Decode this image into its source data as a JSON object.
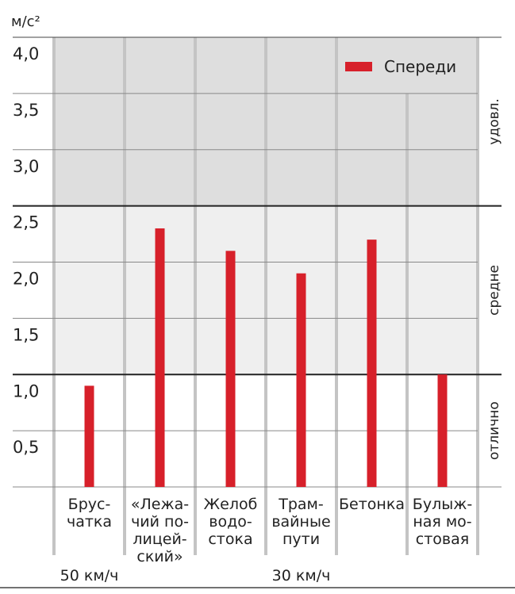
{
  "chart_data": {
    "type": "bar",
    "unit_label": "м/с²",
    "categories": [
      [
        "Брус-",
        "чатка"
      ],
      [
        "«Лежа-",
        "чий по-",
        "лицей-",
        "ский»"
      ],
      [
        "Желоб",
        "водо-",
        "стока"
      ],
      [
        "Трам-",
        "вайные",
        "пути"
      ],
      [
        "Бетонка"
      ],
      [
        "Булыж-",
        "ная мо-",
        "стовая"
      ]
    ],
    "series": [
      {
        "name": "Спереди",
        "color": "#d7202a",
        "values": [
          0.9,
          2.3,
          2.1,
          1.9,
          2.2,
          1.0
        ]
      }
    ],
    "ylim": [
      0,
      4.0
    ],
    "yticks": [
      "0,5",
      "1,0",
      "1,5",
      "2,0",
      "2,5",
      "3,0",
      "3,5",
      "4,0"
    ],
    "ytick_values": [
      0.5,
      1.0,
      1.5,
      2.0,
      2.5,
      3.0,
      3.5,
      4.0
    ],
    "bands": [
      {
        "label": "отлично",
        "from": 0,
        "to": 1.0,
        "color": "#ffffff"
      },
      {
        "label": "средне",
        "from": 1.0,
        "to": 2.5,
        "color": "#efefef"
      },
      {
        "label": "удовл.",
        "from": 2.5,
        "to": 4.0,
        "color": "#dedede"
      }
    ],
    "speed_groups": [
      {
        "label": "50 км/ч",
        "categories": [
          0
        ]
      },
      {
        "label": "30 км/ч",
        "categories": [
          1,
          2,
          3,
          4,
          5
        ]
      }
    ],
    "legend_position": "top-right",
    "grid": true
  }
}
